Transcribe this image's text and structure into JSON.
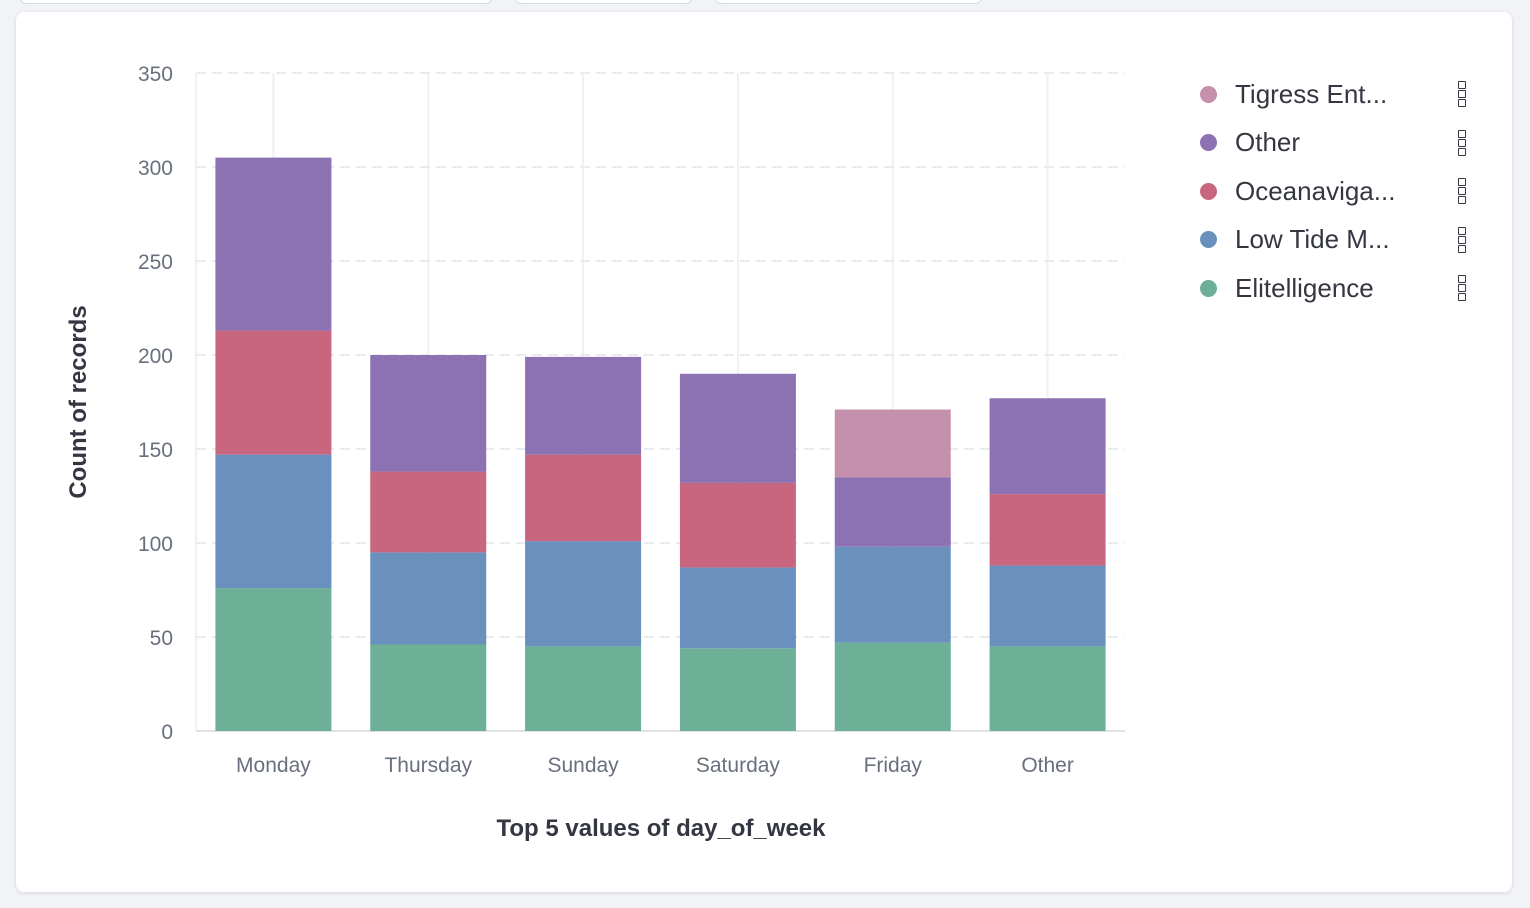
{
  "chart_data": {
    "type": "bar",
    "stacked": true,
    "categories": [
      "Monday",
      "Thursday",
      "Sunday",
      "Saturday",
      "Friday",
      "Other"
    ],
    "series": [
      {
        "name": "Elitelligence",
        "color": "#6daf97",
        "values": [
          76,
          46,
          45,
          44,
          47,
          45
        ]
      },
      {
        "name": "Low Tide M...",
        "color": "#6a91bd",
        "values": [
          71,
          49,
          56,
          43,
          51,
          43
        ]
      },
      {
        "name": "Oceanaviga...",
        "color": "#c8667f",
        "values": [
          66,
          43,
          46,
          45,
          0,
          38
        ]
      },
      {
        "name": "Other",
        "color": "#8c72b3",
        "values": [
          92,
          62,
          52,
          58,
          37,
          51
        ]
      },
      {
        "name": "Tigress Ent...",
        "color": "#c590ab",
        "values": [
          0,
          0,
          0,
          0,
          36,
          0
        ]
      }
    ],
    "xlabel": "Top 5 values of day_of_week",
    "ylabel": "Count of records",
    "ylim": [
      0,
      350
    ],
    "yticks": [
      0,
      50,
      100,
      150,
      200,
      250,
      300,
      350
    ],
    "grid": true,
    "legend_position": "right"
  },
  "legend": {
    "items": [
      {
        "label": "Tigress Ent...",
        "color": "#c590ab"
      },
      {
        "label": "Other",
        "color": "#8c72b3"
      },
      {
        "label": "Oceanaviga...",
        "color": "#c8667f"
      },
      {
        "label": "Low Tide M...",
        "color": "#6a91bd"
      },
      {
        "label": "Elitelligence",
        "color": "#6daf97"
      }
    ]
  }
}
